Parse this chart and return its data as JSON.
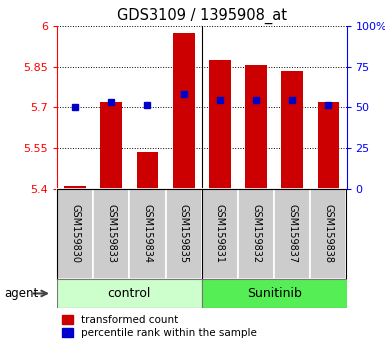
{
  "title": "GDS3109 / 1395908_at",
  "samples": [
    "GSM159830",
    "GSM159833",
    "GSM159834",
    "GSM159835",
    "GSM159831",
    "GSM159832",
    "GSM159837",
    "GSM159838"
  ],
  "red_values": [
    5.41,
    5.72,
    5.535,
    5.972,
    5.875,
    5.855,
    5.835,
    5.72
  ],
  "blue_values": [
    5.7,
    5.72,
    5.71,
    5.748,
    5.728,
    5.728,
    5.728,
    5.71
  ],
  "bar_color": "#cc0000",
  "blue_color": "#0000cc",
  "ymin": 5.4,
  "ymax": 6.0,
  "y_ticks": [
    5.4,
    5.55,
    5.7,
    5.85,
    6.0
  ],
  "y_tick_labels": [
    "5.4",
    "5.55",
    "5.7",
    "5.85",
    "6"
  ],
  "y2_ticks": [
    0,
    25,
    50,
    75,
    100
  ],
  "y2_tick_labels": [
    "0",
    "25",
    "50",
    "75",
    "100%"
  ],
  "bar_width": 0.6,
  "agent_label": "agent",
  "legend_red": "transformed count",
  "legend_blue": "percentile rank within the sample",
  "ctrl_color": "#ccffcc",
  "sunitinib_color": "#55ee55",
  "sample_bg": "#cccccc",
  "n_control": 4,
  "n_sunitinib": 4
}
